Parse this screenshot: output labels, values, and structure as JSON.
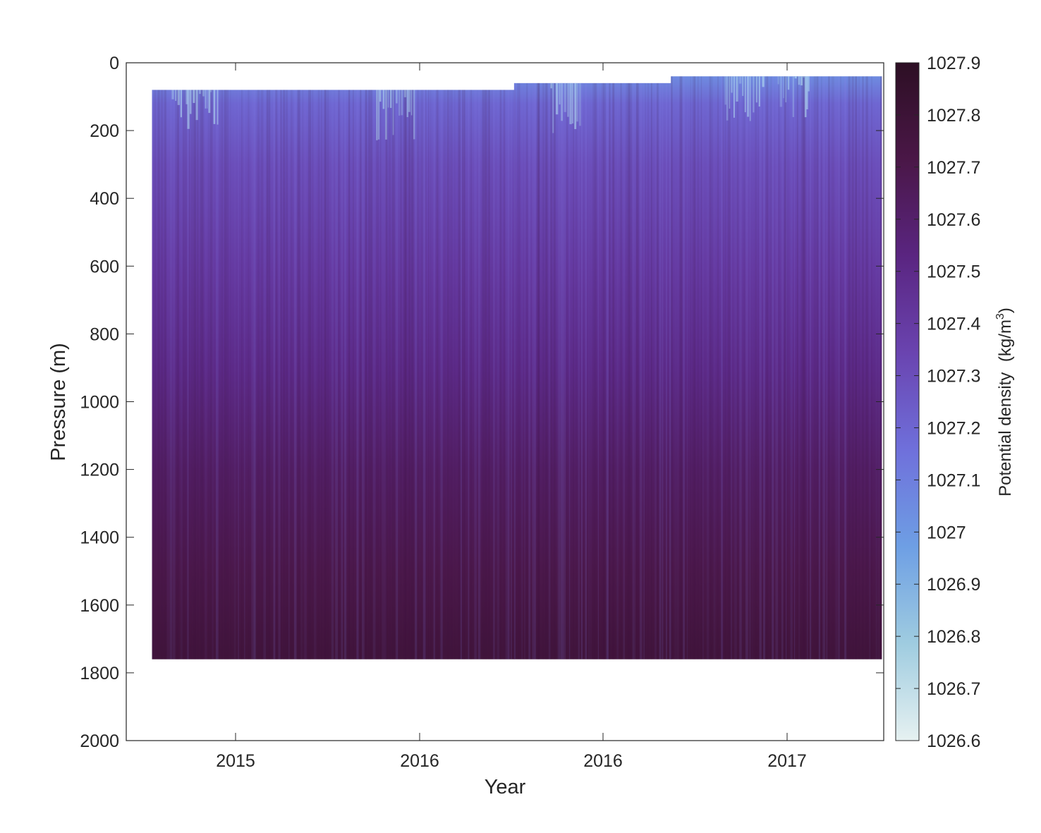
{
  "chart_data": {
    "type": "heatmap",
    "xlabel": "Year",
    "ylabel": "Pressure (m)",
    "x_tick_labels": [
      "2015",
      "2016",
      "2016",
      "2017"
    ],
    "y_ticks": [
      0,
      200,
      400,
      600,
      800,
      1000,
      1200,
      1400,
      1600,
      1800,
      2000
    ],
    "ylim": [
      0,
      2000
    ],
    "y_reversed": true,
    "colorbar": {
      "label": "Potential density",
      "unit_base": "(kg/m",
      "unit_exp": "3",
      "unit_close": ")",
      "range": [
        1026.6,
        1027.9
      ],
      "ticks": [
        "1026.6",
        "1026.7",
        "1026.8",
        "1026.9",
        "1027",
        "1027.1",
        "1027.2",
        "1027.3",
        "1027.4",
        "1027.5",
        "1027.6",
        "1027.7",
        "1027.8",
        "1027.9"
      ],
      "colormap": [
        "#e6f1f1",
        "#9fcce0",
        "#6e9fe4",
        "#6f70db",
        "#6a44b0",
        "#5a2581",
        "#4a1747",
        "#2d0f24"
      ]
    },
    "data_blocks": [
      {
        "x_start": 0.034,
        "x_end": 0.512,
        "top_pressure": 80,
        "bottom_pressure": 1760
      },
      {
        "x_start": 0.512,
        "x_end": 0.719,
        "top_pressure": 60,
        "bottom_pressure": 1760
      },
      {
        "x_start": 0.719,
        "x_end": 0.997,
        "top_pressure": 40,
        "bottom_pressure": 1760
      }
    ],
    "density_profile": [
      {
        "pressure": 40,
        "density": 1027.05
      },
      {
        "pressure": 120,
        "density": 1027.2
      },
      {
        "pressure": 300,
        "density": 1027.3
      },
      {
        "pressure": 600,
        "density": 1027.4
      },
      {
        "pressure": 900,
        "density": 1027.5
      },
      {
        "pressure": 1200,
        "density": 1027.62
      },
      {
        "pressure": 1500,
        "density": 1027.7
      },
      {
        "pressure": 1760,
        "density": 1027.78
      }
    ]
  }
}
